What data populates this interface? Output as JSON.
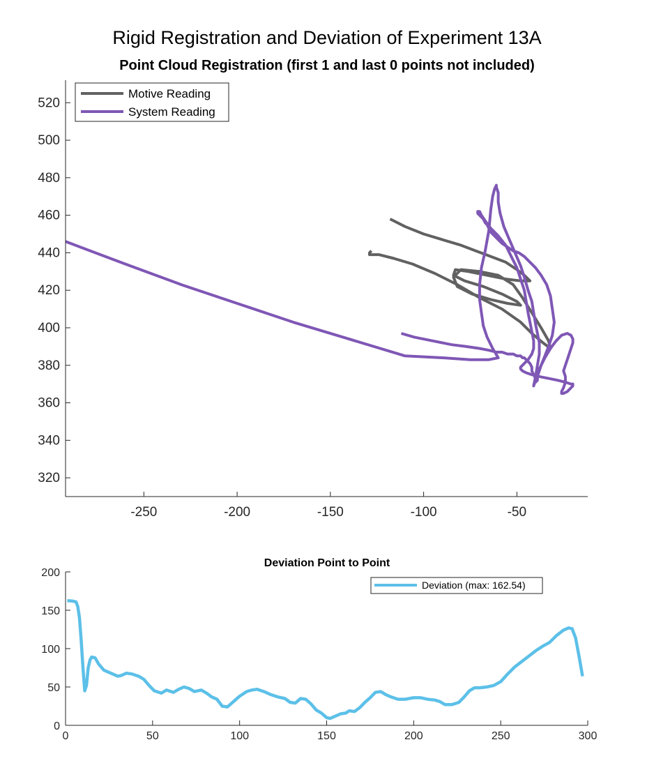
{
  "figure": {
    "title": "Rigid Registration and Deviation of Experiment 13A"
  },
  "chart_data": [
    {
      "type": "line",
      "title": "Point Cloud Registration (first 1 and last 0 points not included)",
      "xlabel": "",
      "ylabel": "",
      "xlim": [
        -292,
        -12
      ],
      "ylim": [
        310,
        532
      ],
      "xticks": [
        -250,
        -200,
        -150,
        -100,
        -50
      ],
      "yticks": [
        320,
        340,
        360,
        380,
        400,
        420,
        440,
        460,
        480,
        500,
        520
      ],
      "grid": false,
      "legend_position": "top-left",
      "series": [
        {
          "name": "Motive Reading",
          "color": "#616161",
          "x": [
            -118,
            -110,
            -100,
            -90,
            -80,
            -72,
            -64,
            -56,
            -50,
            -46,
            -43,
            -48,
            -56,
            -66,
            -76,
            -83,
            -84,
            -78,
            -68,
            -58,
            -50,
            -48,
            -55,
            -64,
            -74,
            -82,
            -84,
            -80,
            -70,
            -60,
            -52,
            -47,
            -42,
            -37,
            -33,
            -32,
            -36,
            -42,
            -48,
            -58,
            -70,
            -82,
            -94,
            -106,
            -116,
            -124,
            -128,
            -129,
            -129,
            -128
          ],
          "y": [
            458,
            454,
            450,
            447,
            444,
            441,
            438,
            435,
            431,
            428,
            425,
            425,
            426,
            428,
            430,
            431,
            428,
            425,
            422,
            418,
            414,
            412,
            413,
            415,
            418,
            422,
            427,
            431,
            430,
            428,
            423,
            416,
            408,
            400,
            393,
            389,
            392,
            397,
            403,
            410,
            416,
            423,
            429,
            434,
            437,
            439,
            439,
            439,
            440,
            441
          ]
        },
        {
          "name": "System Reading",
          "color": "#7f57b5",
          "x": [
            -292,
            -260,
            -230,
            -200,
            -170,
            -140,
            -110,
            -90,
            -75,
            -65,
            -60,
            -63,
            -66,
            -68,
            -69,
            -70,
            -70,
            -69,
            -67,
            -65,
            -64,
            -63,
            -62,
            -61,
            -61,
            -60,
            -60,
            -59,
            -57,
            -54,
            -51,
            -48,
            -46,
            -44,
            -42,
            -41,
            -40,
            -39,
            -38,
            -38,
            -39,
            -40,
            -41,
            -40,
            -38,
            -35,
            -32,
            -29,
            -26,
            -23,
            -21,
            -20,
            -20,
            -21,
            -22,
            -23,
            -24,
            -25,
            -24,
            -24,
            -25,
            -26,
            -26,
            -25,
            -23,
            -22,
            -21,
            -20,
            -20,
            -21,
            -24,
            -28,
            -33,
            -38,
            -42,
            -45,
            -47,
            -48,
            -48,
            -46,
            -44,
            -42,
            -41,
            -41,
            -42,
            -43,
            -44,
            -45,
            -46,
            -48,
            -50,
            -53,
            -56,
            -60,
            -64,
            -67,
            -69,
            -70,
            -71,
            -71,
            -71,
            -70,
            -69,
            -68,
            -67,
            -66,
            -65,
            -65,
            -64,
            -64,
            -63,
            -62,
            -60,
            -58,
            -55,
            -52,
            -49,
            -46,
            -43,
            -40,
            -37,
            -34,
            -32,
            -31,
            -30,
            -31,
            -33,
            -35,
            -37,
            -38,
            -39,
            -39,
            -40,
            -40,
            -41,
            -42,
            -42,
            -43,
            -44,
            -45,
            -46,
            -47,
            -48,
            -50,
            -52,
            -55,
            -58,
            -61,
            -65,
            -70,
            -77,
            -85,
            -95,
            -105,
            -112
          ],
          "y": [
            446,
            434,
            423,
            413,
            403,
            394,
            385,
            384,
            383,
            383,
            384,
            389,
            395,
            401,
            408,
            415,
            423,
            432,
            441,
            452,
            463,
            470,
            474,
            476,
            475,
            472,
            467,
            461,
            454,
            447,
            440,
            433,
            427,
            420,
            414,
            408,
            402,
            397,
            392,
            386,
            380,
            374,
            369,
            372,
            378,
            384,
            389,
            393,
            396,
            397,
            396,
            394,
            392,
            389,
            386,
            383,
            380,
            377,
            374,
            371,
            368,
            366,
            365,
            365,
            366,
            367,
            368,
            369,
            370,
            370,
            371,
            372,
            373,
            374,
            375,
            376,
            377,
            378,
            379,
            381,
            383,
            386,
            389,
            393,
            398,
            403,
            408,
            414,
            420,
            426,
            432,
            438,
            444,
            449,
            453,
            457,
            460,
            462,
            462,
            462,
            461,
            460,
            459,
            458,
            456,
            455,
            453,
            452,
            452,
            451,
            450,
            449,
            447,
            445,
            443,
            441,
            440,
            438,
            435,
            432,
            428,
            423,
            417,
            410,
            403,
            396,
            390,
            385,
            380,
            377,
            374,
            372,
            371,
            373,
            375,
            377,
            379,
            381,
            382,
            383,
            384,
            384,
            385,
            385,
            386,
            386,
            387,
            387,
            388,
            389,
            390,
            391,
            393,
            395,
            397
          ]
        }
      ]
    },
    {
      "type": "line",
      "title": "Deviation Point to Point",
      "xlabel": "",
      "ylabel": "",
      "xlim": [
        0,
        300
      ],
      "ylim": [
        0,
        200
      ],
      "xticks": [
        0,
        50,
        100,
        150,
        200,
        250,
        300
      ],
      "yticks": [
        0,
        50,
        100,
        150,
        200
      ],
      "grid": false,
      "legend_position": "top-right",
      "series": [
        {
          "name": "Deviation (max: 162.54)",
          "color": "#5cc0e8",
          "x": [
            1,
            4,
            6,
            7,
            8,
            9,
            10,
            11,
            12,
            13,
            14,
            15,
            17,
            19,
            22,
            26,
            30,
            32,
            35,
            38,
            42,
            45,
            48,
            51,
            55,
            58,
            62,
            65,
            68,
            71,
            74,
            78,
            81,
            84,
            87,
            90,
            93,
            96,
            100,
            104,
            107,
            110,
            114,
            118,
            122,
            126,
            129,
            132,
            135,
            138,
            141,
            144,
            147,
            150,
            152,
            155,
            158,
            161,
            163,
            166,
            169,
            172,
            175,
            178,
            181,
            184,
            187,
            191,
            195,
            200,
            204,
            208,
            212,
            215,
            218,
            222,
            226,
            229,
            232,
            235,
            238,
            242,
            246,
            250,
            254,
            258,
            262,
            266,
            270,
            274,
            278,
            282,
            286,
            289,
            291,
            293,
            295,
            297
          ],
          "y": [
            162.54,
            162,
            161,
            155,
            140,
            110,
            75,
            45,
            52,
            75,
            85,
            89,
            88,
            80,
            72,
            68,
            64,
            65,
            68,
            67,
            64,
            60,
            52,
            45,
            42,
            46,
            43,
            47,
            50,
            48,
            44,
            46,
            42,
            37,
            34,
            25,
            24,
            30,
            38,
            44,
            46,
            47,
            44,
            40,
            37,
            35,
            30,
            29,
            35,
            34,
            28,
            20,
            16,
            10,
            9,
            12,
            15,
            16,
            19,
            18,
            23,
            30,
            36,
            43,
            44,
            40,
            37,
            34,
            34,
            36,
            36,
            34,
            33,
            31,
            27,
            27,
            30,
            37,
            45,
            49,
            49,
            50,
            52,
            57,
            67,
            76,
            83,
            90,
            97,
            103,
            108,
            117,
            124,
            127,
            126,
            114,
            90,
            64
          ]
        }
      ]
    }
  ]
}
